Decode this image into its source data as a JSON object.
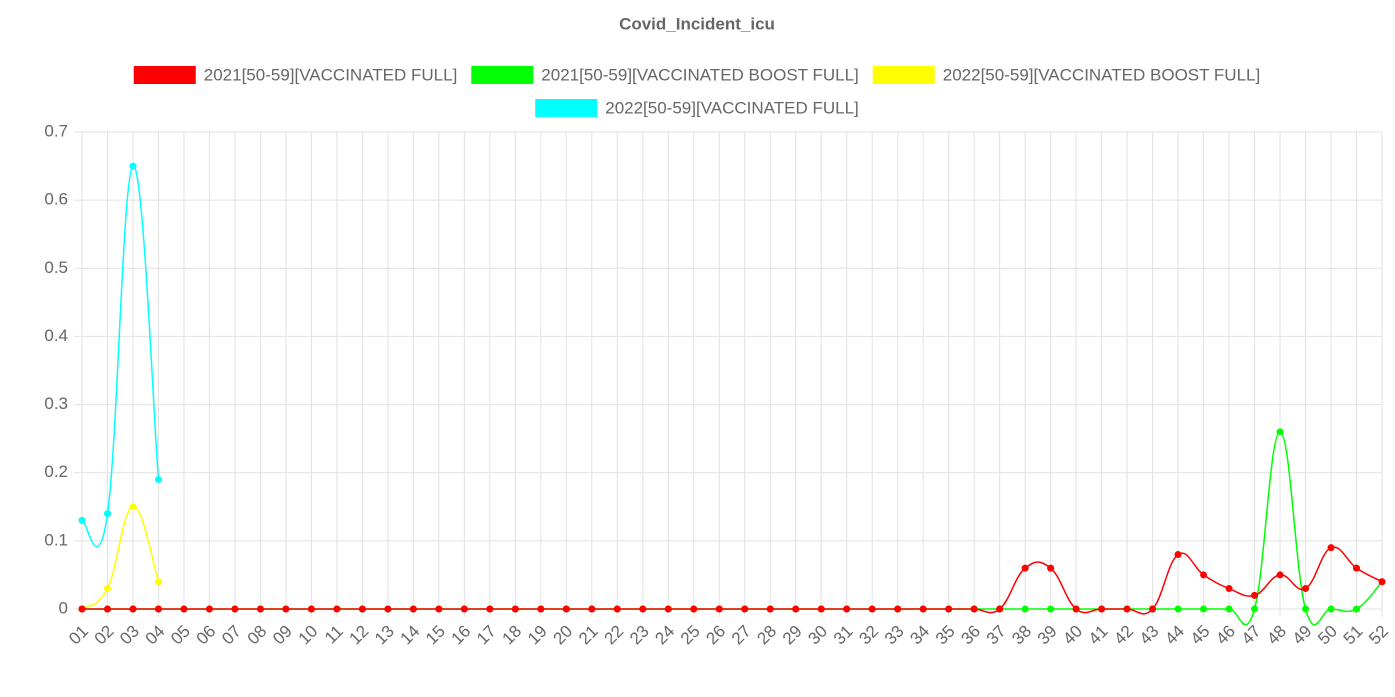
{
  "chart_data": {
    "type": "line",
    "title": "Covid_Incident_icu",
    "categories": [
      "01",
      "02",
      "03",
      "04",
      "05",
      "06",
      "07",
      "08",
      "09",
      "10",
      "11",
      "12",
      "13",
      "14",
      "15",
      "16",
      "17",
      "18",
      "19",
      "20",
      "21",
      "22",
      "23",
      "24",
      "25",
      "26",
      "27",
      "28",
      "29",
      "30",
      "31",
      "32",
      "33",
      "34",
      "35",
      "36",
      "37",
      "38",
      "39",
      "40",
      "41",
      "42",
      "43",
      "44",
      "45",
      "46",
      "47",
      "48",
      "49",
      "50",
      "51",
      "52"
    ],
    "series": [
      {
        "name": "2021[50-59][VACCINATED FULL]",
        "color": "#ff0000",
        "values": [
          0,
          0,
          0,
          0,
          0,
          0,
          0,
          0,
          0,
          0,
          0,
          0,
          0,
          0,
          0,
          0,
          0,
          0,
          0,
          0,
          0,
          0,
          0,
          0,
          0,
          0,
          0,
          0,
          0,
          0,
          0,
          0,
          0,
          0,
          0,
          0,
          0,
          0.06,
          0.06,
          0,
          0,
          0,
          0,
          0.08,
          0.05,
          0.03,
          0.02,
          0.05,
          0.03,
          0.09,
          0.06,
          0.04
        ]
      },
      {
        "name": "2021[50-59][VACCINATED BOOST FULL]",
        "color": "#00ff00",
        "values": [
          0,
          0,
          0,
          0,
          0,
          0,
          0,
          0,
          0,
          0,
          0,
          0,
          0,
          0,
          0,
          0,
          0,
          0,
          0,
          0,
          0,
          0,
          0,
          0,
          0,
          0,
          0,
          0,
          0,
          0,
          0,
          0,
          0,
          0,
          0,
          0,
          0,
          0,
          0,
          0,
          0,
          0,
          0,
          0,
          0,
          0,
          0,
          0.26,
          0,
          0,
          0,
          0.04
        ]
      },
      {
        "name": "2022[50-59][VACCINATED BOOST FULL]",
        "color": "#ffff00",
        "values": [
          0,
          0.03,
          0.15,
          0.04,
          null,
          null,
          null,
          null,
          null,
          null,
          null,
          null,
          null,
          null,
          null,
          null,
          null,
          null,
          null,
          null,
          null,
          null,
          null,
          null,
          null,
          null,
          null,
          null,
          null,
          null,
          null,
          null,
          null,
          null,
          null,
          null,
          null,
          null,
          null,
          null,
          null,
          null,
          null,
          null,
          null,
          null,
          null,
          null,
          null,
          null,
          null,
          null
        ]
      },
      {
        "name": "2022[50-59][VACCINATED FULL]",
        "color": "#00ffff",
        "values": [
          0.13,
          0.14,
          0.65,
          0.19,
          null,
          null,
          null,
          null,
          null,
          null,
          null,
          null,
          null,
          null,
          null,
          null,
          null,
          null,
          null,
          null,
          null,
          null,
          null,
          null,
          null,
          null,
          null,
          null,
          null,
          null,
          null,
          null,
          null,
          null,
          null,
          null,
          null,
          null,
          null,
          null,
          null,
          null,
          null,
          null,
          null,
          null,
          null,
          null,
          null,
          null,
          null,
          null
        ]
      }
    ],
    "ylim": [
      0,
      0.7
    ],
    "yticks": [
      0,
      0.1,
      0.2,
      0.3,
      0.4,
      0.5,
      0.6,
      0.7
    ],
    "grid": true
  }
}
